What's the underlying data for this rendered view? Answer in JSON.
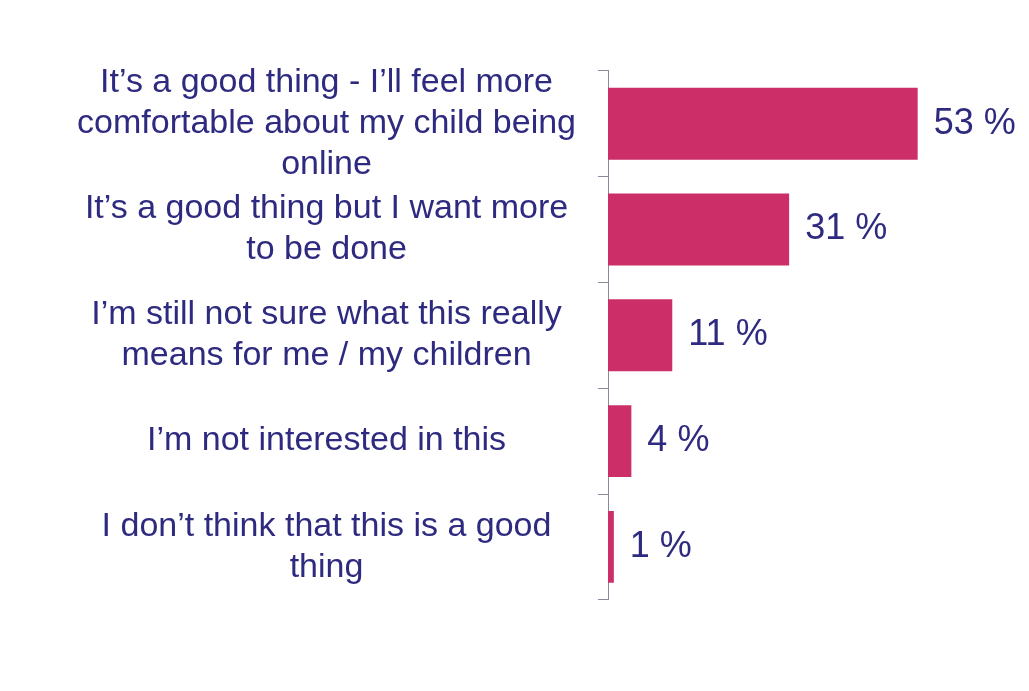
{
  "chart_data": {
    "type": "bar",
    "orientation": "horizontal",
    "categories": [
      "It’s a good thing - I’ll feel more comfortable about my child being online",
      "It’s a good thing but I want more to be done",
      "I’m still not sure what this really means for me / my children",
      "I’m not interested in this",
      "I don’t think that this is a good thing"
    ],
    "values": [
      53,
      31,
      11,
      4,
      1
    ],
    "color": "#cc2e68",
    "value_labels": [
      "53 %",
      "31 %",
      "11 %",
      "4 %",
      "1 %"
    ],
    "grid": false,
    "legend": false
  }
}
